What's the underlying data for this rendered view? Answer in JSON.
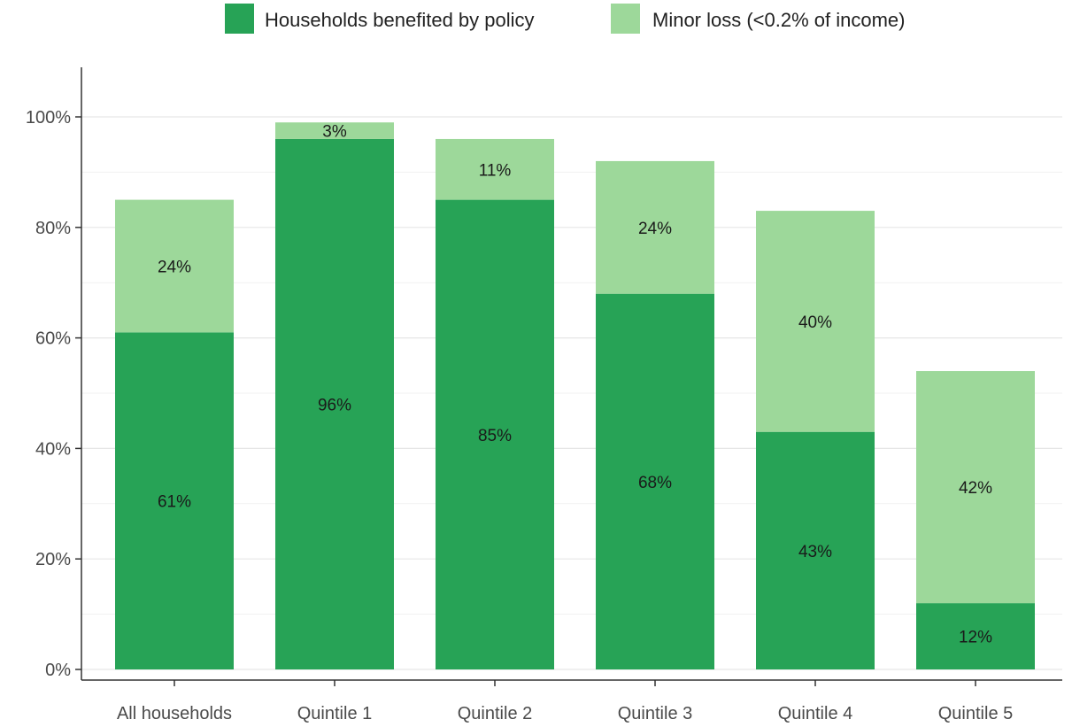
{
  "chart_data": {
    "type": "bar",
    "stacked": true,
    "categories": [
      "All households",
      "Quintile 1",
      "Quintile 2",
      "Quintile 3",
      "Quintile 4",
      "Quintile 5"
    ],
    "series": [
      {
        "name": "Households benefited by policy",
        "color": "#27a356",
        "values": [
          61,
          96,
          85,
          68,
          43,
          12
        ],
        "labels": [
          "61%",
          "96%",
          "85%",
          "68%",
          "43%",
          "12%"
        ]
      },
      {
        "name": "Minor loss (<0.2% of income)",
        "color": "#9dd89a",
        "values": [
          24,
          3,
          11,
          24,
          40,
          42
        ],
        "labels": [
          "24%",
          "3%",
          "11%",
          "24%",
          "40%",
          "42%"
        ]
      }
    ],
    "y_ticks": [
      0,
      20,
      40,
      60,
      80,
      100
    ],
    "y_tick_labels": [
      "0%",
      "20%",
      "40%",
      "60%",
      "80%",
      "100%"
    ],
    "ylim": [
      0,
      108
    ],
    "grid": true,
    "legend_position": "top",
    "title": "",
    "xlabel": "",
    "ylabel": ""
  }
}
